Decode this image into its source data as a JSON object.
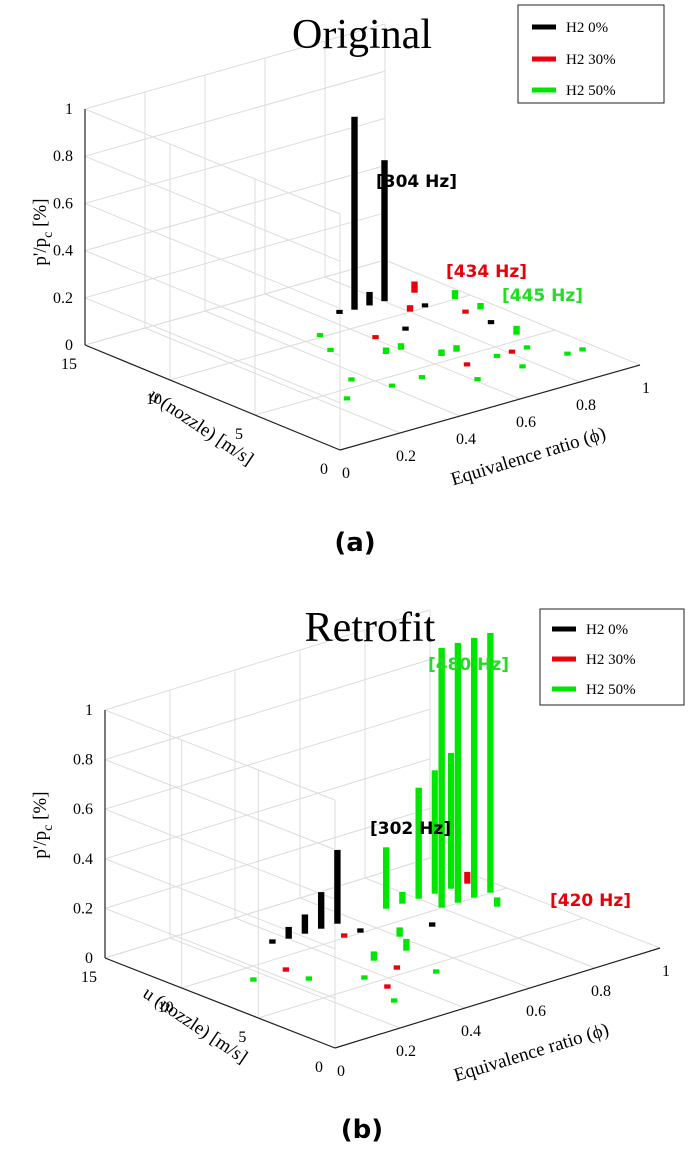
{
  "chart_data": [
    {
      "type": "bar3d",
      "title": "Original",
      "panel_label": "(a)",
      "zlabel_main": "p'/p",
      "zlabel_sub": "c",
      "zlabel_unit": " [%]",
      "xlabel": "Equivalence ratio (ϕ)",
      "ylabel": "u (nozzle) [m/s]",
      "xlim": [
        0,
        1
      ],
      "ylim": [
        0,
        15
      ],
      "zlim": [
        0,
        1
      ],
      "x_ticks": [
        "0",
        "0.2",
        "0.4",
        "0.6",
        "0.8",
        "1"
      ],
      "y_ticks": [
        "0",
        "5",
        "10",
        "15"
      ],
      "z_ticks": [
        "0",
        "0.2",
        "0.4",
        "0.6",
        "0.8",
        "1"
      ],
      "legend": [
        {
          "label": "H2 0%",
          "color": "#000000"
        },
        {
          "label": "H2 30%",
          "color": "#e8000b"
        },
        {
          "label": "H2 50%",
          "color": "#00e600"
        }
      ],
      "annotations": [
        {
          "text": "[304 Hz]",
          "color": "#000000"
        },
        {
          "text": "[434 Hz]",
          "color": "#e8000b"
        },
        {
          "text": "[445 Hz]",
          "color": "#22dd22"
        }
      ],
      "series": [
        {
          "name": "H2 0%",
          "color": "#000000",
          "points": [
            {
              "x": 0.7,
              "y": 11.5,
              "z": 0.82
            },
            {
              "x": 0.8,
              "y": 11.5,
              "z": 0.6
            },
            {
              "x": 0.75,
              "y": 11.5,
              "z": 0.06
            },
            {
              "x": 0.65,
              "y": 11.5,
              "z": 0.02
            },
            {
              "x": 0.85,
              "y": 10.0,
              "z": 0.02
            },
            {
              "x": 0.7,
              "y": 8.5,
              "z": 0.02
            },
            {
              "x": 0.9,
              "y": 7.0,
              "z": 0.02
            }
          ]
        },
        {
          "name": "H2 30%",
          "color": "#e8000b",
          "points": [
            {
              "x": 0.9,
              "y": 11.5,
              "z": 0.05
            },
            {
              "x": 0.8,
              "y": 10.0,
              "z": 0.03
            },
            {
              "x": 0.9,
              "y": 8.5,
              "z": 0.02
            },
            {
              "x": 0.6,
              "y": 8.5,
              "z": 0.02
            },
            {
              "x": 0.65,
              "y": 4.0,
              "z": 0.02
            },
            {
              "x": 0.8,
              "y": 4.0,
              "z": 0.02
            }
          ]
        },
        {
          "name": "H2 50%",
          "color": "#00e600",
          "points": [
            {
              "x": 0.95,
              "y": 10.0,
              "z": 0.04
            },
            {
              "x": 0.95,
              "y": 8.5,
              "z": 0.03
            },
            {
              "x": 0.9,
              "y": 5.5,
              "z": 0.04
            },
            {
              "x": 0.55,
              "y": 7.0,
              "z": 0.03
            },
            {
              "x": 0.6,
              "y": 7.0,
              "z": 0.03
            },
            {
              "x": 0.65,
              "y": 5.5,
              "z": 0.03
            },
            {
              "x": 0.7,
              "y": 5.5,
              "z": 0.03
            },
            {
              "x": 0.75,
              "y": 4.0,
              "z": 0.02
            },
            {
              "x": 0.85,
              "y": 4.0,
              "z": 0.02
            },
            {
              "x": 0.9,
              "y": 2.5,
              "z": 0.02
            },
            {
              "x": 0.95,
              "y": 2.5,
              "z": 0.02
            },
            {
              "x": 0.5,
              "y": 10.0,
              "z": 0.02
            },
            {
              "x": 0.45,
              "y": 8.5,
              "z": 0.02
            },
            {
              "x": 0.35,
              "y": 5.5,
              "z": 0.02
            },
            {
              "x": 0.4,
              "y": 4.0,
              "z": 0.02
            },
            {
              "x": 0.5,
              "y": 4.0,
              "z": 0.02
            },
            {
              "x": 0.6,
              "y": 2.5,
              "z": 0.02
            },
            {
              "x": 0.75,
              "y": 2.5,
              "z": 0.02
            },
            {
              "x": 0.25,
              "y": 4.0,
              "z": 0.02
            }
          ]
        }
      ]
    },
    {
      "type": "bar3d",
      "title": "Retrofit",
      "panel_label": "(b)",
      "zlabel_main": "p'/p",
      "zlabel_sub": "c",
      "zlabel_unit": " [%]",
      "xlabel": "Equivalence ratio (ϕ)",
      "ylabel": "u (nozzle) [m/s]",
      "xlim": [
        0,
        1
      ],
      "ylim": [
        0,
        15
      ],
      "zlim": [
        0,
        1
      ],
      "x_ticks": [
        "0",
        "0.2",
        "0.4",
        "0.6",
        "0.8",
        "1"
      ],
      "y_ticks": [
        "0",
        "5",
        "10",
        "15"
      ],
      "z_ticks": [
        "0",
        "0.2",
        "0.4",
        "0.6",
        "0.8",
        "1"
      ],
      "legend": [
        {
          "label": "H2 0%",
          "color": "#000000"
        },
        {
          "label": "H2 30%",
          "color": "#e8000b"
        },
        {
          "label": "H2 50%",
          "color": "#00e600"
        }
      ],
      "annotations": [
        {
          "text": "[302 Hz]",
          "color": "#000000"
        },
        {
          "text": "[480 Hz]",
          "color": "#22dd22"
        },
        {
          "text": "[420 Hz]",
          "color": "#e8000b"
        }
      ],
      "series": [
        {
          "name": "H2 0%",
          "color": "#000000",
          "points": [
            {
              "x": 0.55,
              "y": 11.5,
              "z": 0.3
            },
            {
              "x": 0.5,
              "y": 11.5,
              "z": 0.15
            },
            {
              "x": 0.45,
              "y": 11.5,
              "z": 0.08
            },
            {
              "x": 0.4,
              "y": 11.5,
              "z": 0.05
            },
            {
              "x": 0.35,
              "y": 11.5,
              "z": 0.02
            },
            {
              "x": 0.55,
              "y": 10.0,
              "z": 0.02
            },
            {
              "x": 0.7,
              "y": 8.5,
              "z": 0.02
            }
          ]
        },
        {
          "name": "H2 30%",
          "color": "#e8000b",
          "points": [
            {
              "x": 0.95,
              "y": 11.5,
              "z": 0.05
            },
            {
              "x": 0.95,
              "y": 10.0,
              "z": 0.04
            },
            {
              "x": 0.5,
              "y": 10.0,
              "z": 0.02
            },
            {
              "x": 0.25,
              "y": 8.5,
              "z": 0.02
            },
            {
              "x": 0.45,
              "y": 5.5,
              "z": 0.02
            },
            {
              "x": 0.35,
              "y": 4.0,
              "z": 0.02
            }
          ]
        },
        {
          "name": "H2 50%",
          "color": "#00e600",
          "points": [
            {
              "x": 0.95,
              "y": 10.0,
              "z": 1.05
            },
            {
              "x": 0.9,
              "y": 10.0,
              "z": 1.05
            },
            {
              "x": 0.85,
              "y": 10.0,
              "z": 1.05
            },
            {
              "x": 0.8,
              "y": 10.0,
              "z": 1.05
            },
            {
              "x": 0.9,
              "y": 11.5,
              "z": 0.55
            },
            {
              "x": 0.85,
              "y": 11.5,
              "z": 0.5
            },
            {
              "x": 0.8,
              "y": 11.5,
              "z": 0.45
            },
            {
              "x": 0.7,
              "y": 11.5,
              "z": 0.25
            },
            {
              "x": 0.75,
              "y": 11.5,
              "z": 0.05
            },
            {
              "x": 0.9,
              "y": 8.5,
              "z": 0.04
            },
            {
              "x": 0.6,
              "y": 8.5,
              "z": 0.04
            },
            {
              "x": 0.55,
              "y": 7.0,
              "z": 0.05
            },
            {
              "x": 0.45,
              "y": 7.0,
              "z": 0.04
            },
            {
              "x": 0.25,
              "y": 7.0,
              "z": 0.02
            },
            {
              "x": 0.15,
              "y": 8.5,
              "z": 0.02
            },
            {
              "x": 0.35,
              "y": 5.5,
              "z": 0.02
            },
            {
              "x": 0.3,
              "y": 2.5,
              "z": 0.02
            },
            {
              "x": 0.5,
              "y": 4.0,
              "z": 0.02
            }
          ]
        }
      ]
    }
  ]
}
